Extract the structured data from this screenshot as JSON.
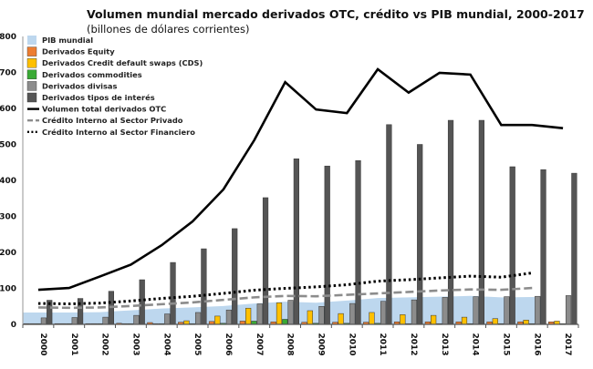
{
  "chart_data": {
    "type": "bar",
    "title": "Volumen mundial mercado derivados OTC, crédito vs PIB mundial, 2000-2017",
    "subtitle": "(billones de dólares corrientes)",
    "xlabel": "",
    "ylabel": "",
    "ylim": [
      0,
      800
    ],
    "yticks": [
      0,
      100,
      200,
      300,
      400,
      500,
      600,
      700,
      800
    ],
    "grid": false,
    "legend_position": "top-left",
    "categories": [
      "2000",
      "2001",
      "2002",
      "2003",
      "2004",
      "2005",
      "2006",
      "2007",
      "2008",
      "2009",
      "2010",
      "2011",
      "2012",
      "2013",
      "2014",
      "2015",
      "2016",
      "2017"
    ],
    "series": [
      {
        "name": "PIB mundial",
        "kind": "area",
        "color": "#bdd7ee",
        "values": [
          33,
          33,
          34,
          39,
          44,
          47,
          51,
          58,
          63,
          60,
          66,
          73,
          75,
          77,
          79,
          75,
          76,
          null
        ]
      },
      {
        "name": "Derivados Equity",
        "kind": "bar",
        "color": "#ed7d31",
        "values": [
          2,
          2,
          2,
          3,
          5,
          6,
          8,
          9,
          7,
          6,
          6,
          6,
          7,
          7,
          7,
          7,
          7,
          7
        ]
      },
      {
        "name": "Derivados Credit default swaps (CDS)",
        "kind": "bar",
        "color": "#ffc000",
        "values": [
          0,
          0,
          0,
          1,
          2,
          10,
          23,
          45,
          60,
          38,
          30,
          33,
          27,
          25,
          20,
          16,
          12,
          9
        ]
      },
      {
        "name": "Derivados commodities",
        "kind": "bar",
        "color": "#3aaa35",
        "values": [
          1,
          1,
          1,
          1,
          1,
          2,
          3,
          9,
          14,
          3,
          3,
          3,
          2,
          2,
          2,
          1,
          1,
          1
        ]
      },
      {
        "name": "Derivados divisas",
        "kind": "bar",
        "color": "#8c8c8c",
        "values": [
          18,
          19,
          20,
          25,
          29,
          33,
          40,
          57,
          67,
          50,
          58,
          64,
          68,
          75,
          77,
          77,
          78,
          80
        ]
      },
      {
        "name": "Derivados tipos de interés",
        "kind": "bar",
        "color": "#555555",
        "values": [
          67,
          72,
          92,
          124,
          172,
          210,
          266,
          352,
          460,
          440,
          455,
          555,
          500,
          567,
          567,
          438,
          430,
          420
        ]
      },
      {
        "name": "Volumen total derivados OTC",
        "kind": "line",
        "style": "solid",
        "color": "#000000",
        "values": [
          96,
          101,
          133,
          166,
          220,
          286,
          375,
          512,
          673,
          597,
          587,
          709,
          644,
          699,
          694,
          554,
          554,
          545
        ]
      },
      {
        "name": "Crédito Interno al Sector Privado",
        "kind": "line",
        "style": "dashed",
        "color": "#8c8c8c",
        "values": [
          47,
          46,
          47,
          51,
          56,
          61,
          68,
          75,
          79,
          78,
          82,
          86,
          90,
          94,
          97,
          96,
          101,
          null
        ]
      },
      {
        "name": "Crédito Interno al Sector Financiero",
        "kind": "line",
        "style": "dotted",
        "color": "#000000",
        "values": [
          58,
          57,
          59,
          65,
          72,
          78,
          86,
          95,
          100,
          104,
          110,
          120,
          124,
          129,
          134,
          131,
          143,
          null
        ]
      }
    ]
  }
}
